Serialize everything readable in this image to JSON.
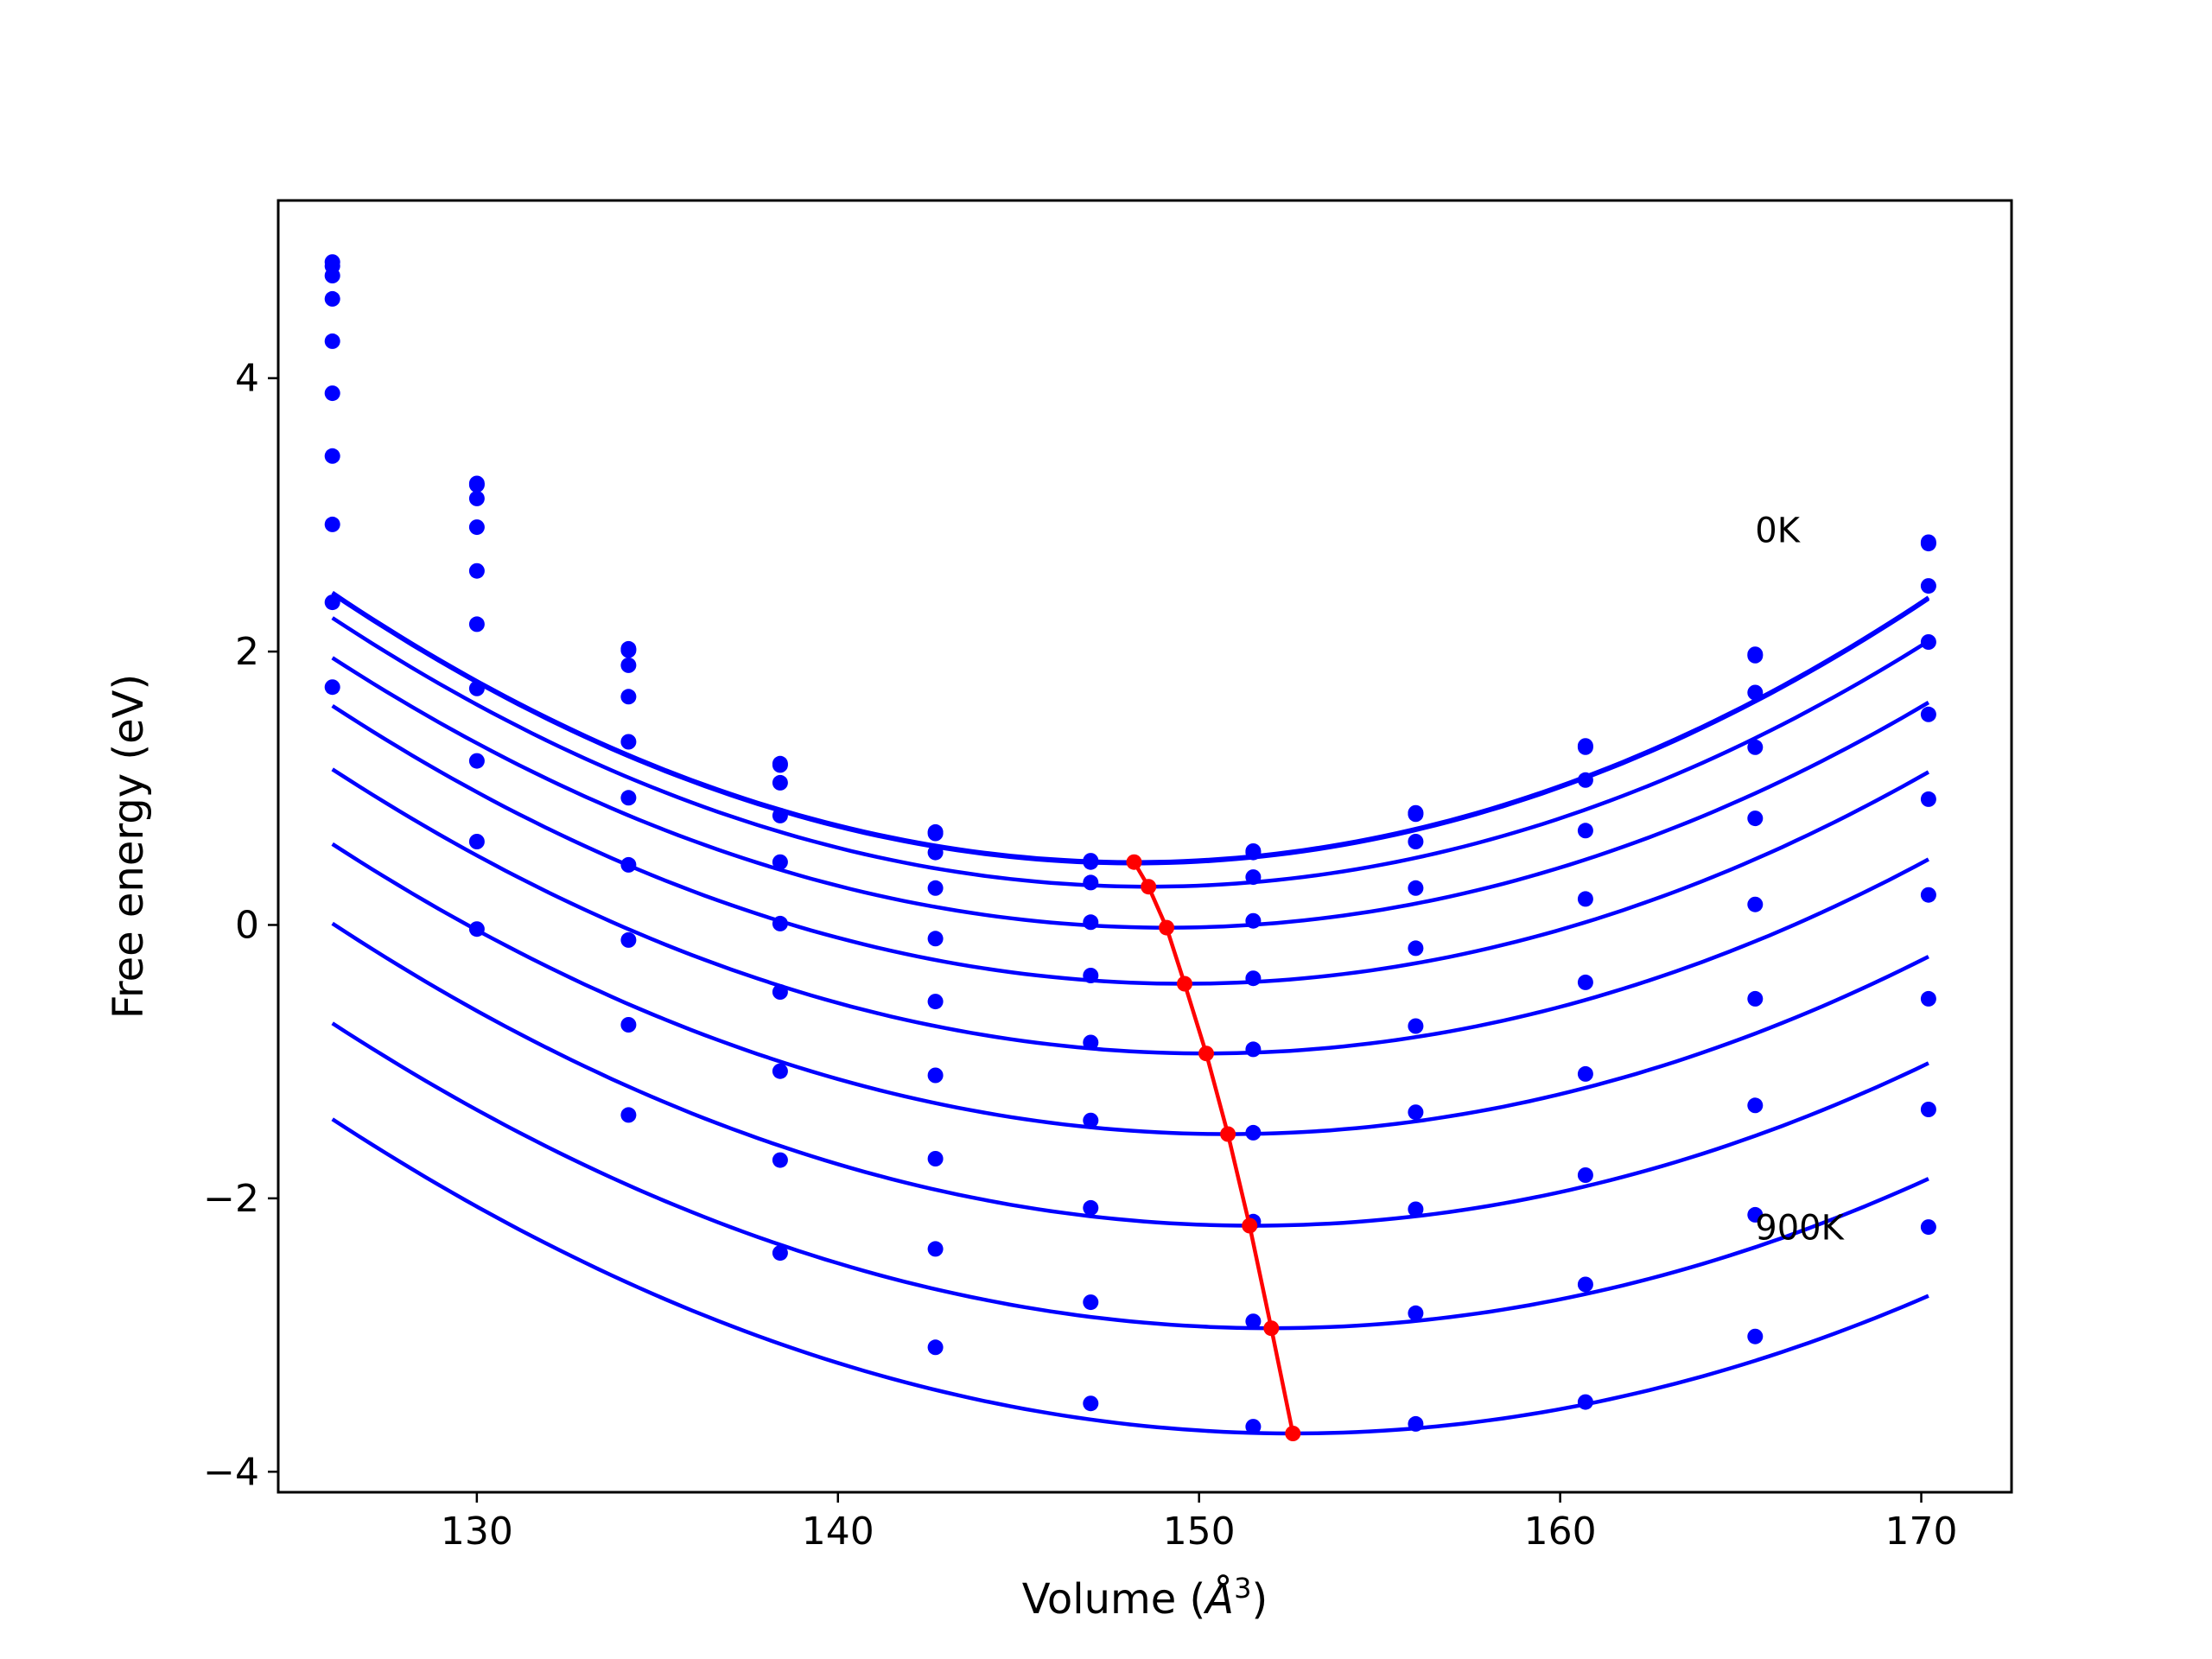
{
  "chart_data": {
    "type": "line",
    "title": "",
    "xlabel": "Volume (Å³)",
    "xlabel_base": "Volume (",
    "xlabel_sym": "Å",
    "xlabel_sup": "3",
    "xlabel_end": ")",
    "ylabel": "Free energy (eV)",
    "xlim": [
      124.5,
      172.5
    ],
    "ylim": [
      -4.15,
      5.3
    ],
    "xticks": [
      130,
      140,
      150,
      160,
      170
    ],
    "xtick_labels": [
      "130",
      "140",
      "150",
      "160",
      "170"
    ],
    "yticks": [
      -4,
      -2,
      0,
      2,
      4
    ],
    "ytick_labels": [
      "−4",
      "−2",
      "0",
      "2",
      "4"
    ],
    "grid": false,
    "colors": {
      "curves": "#0000ff",
      "minimum_path": "#ff0000"
    },
    "x": [
      126.0,
      130.0,
      134.2,
      138.4,
      142.7,
      147.0,
      151.5,
      156.0,
      160.7,
      165.4,
      170.2
    ],
    "series": [
      {
        "values": [
          4.85,
          3.23,
          2.02,
          1.18,
          0.68,
          0.47,
          0.54,
          0.82,
          1.31,
          1.98,
          2.8
        ]
      },
      {
        "values": [
          4.82,
          3.22,
          2.01,
          1.17,
          0.67,
          0.46,
          0.53,
          0.81,
          1.3,
          1.97,
          2.79
        ]
      },
      {
        "values": [
          4.75,
          3.12,
          1.9,
          1.04,
          0.53,
          0.31,
          0.35,
          0.61,
          1.06,
          1.7,
          2.48
        ]
      },
      {
        "values": [
          4.58,
          2.91,
          1.67,
          0.8,
          0.27,
          0.02,
          0.03,
          0.27,
          0.69,
          1.3,
          2.07
        ]
      },
      {
        "values": [
          4.27,
          2.59,
          1.34,
          0.46,
          -0.1,
          -0.37,
          -0.39,
          -0.17,
          0.19,
          0.78,
          1.54
        ]
      },
      {
        "values": [
          3.89,
          2.2,
          0.93,
          0.01,
          -0.56,
          -0.86,
          -0.91,
          -0.74,
          -0.42,
          0.15,
          0.92
        ]
      },
      {
        "values": [
          3.43,
          1.73,
          0.44,
          -0.49,
          -1.1,
          -1.43,
          -1.52,
          -1.37,
          -1.09,
          -0.54,
          0.22
        ]
      },
      {
        "values": [
          2.93,
          1.2,
          -0.11,
          -1.07,
          -1.71,
          -2.07,
          -2.17,
          -2.08,
          -1.83,
          -1.32,
          -0.54
        ]
      },
      {
        "values": [
          2.36,
          0.61,
          -0.73,
          -1.72,
          -2.37,
          -2.76,
          -2.9,
          -2.84,
          -2.63,
          -2.12,
          -1.35
        ]
      },
      {
        "values": [
          1.74,
          -0.03,
          -1.39,
          -2.4,
          -3.09,
          -3.5,
          -3.67,
          -3.65,
          -3.49,
          -3.01,
          -2.21
        ]
      }
    ],
    "fit_curves": [
      {
        "coef": [
          0.004,
          148.2,
          0.45
        ]
      },
      {
        "coef": [
          0.004,
          148.2,
          0.46
        ]
      },
      {
        "coef": [
          0.00385,
          148.6,
          0.28
        ]
      },
      {
        "coef": [
          0.0037,
          149.1,
          -0.02
        ]
      },
      {
        "coef": [
          0.00365,
          149.6,
          -0.43
        ]
      },
      {
        "coef": [
          0.00355,
          150.2,
          -0.94
        ]
      },
      {
        "coef": [
          0.00345,
          150.8,
          -1.53
        ]
      },
      {
        "coef": [
          0.0034,
          151.5,
          -2.2
        ]
      },
      {
        "coef": [
          0.0033,
          152.0,
          -2.95
        ]
      },
      {
        "coef": [
          0.00325,
          152.6,
          -3.72
        ]
      }
    ],
    "minimum_path": {
      "x": [
        148.2,
        148.6,
        149.1,
        149.6,
        150.2,
        150.8,
        151.4,
        152.0,
        152.6
      ],
      "y": [
        0.46,
        0.28,
        -0.02,
        -0.43,
        -0.94,
        -1.53,
        -2.2,
        -2.95,
        -3.72
      ]
    },
    "annotations": [
      {
        "text": "0K",
        "x": 165.4,
        "y": 2.8
      },
      {
        "text": "900K",
        "x": 165.4,
        "y": -2.3
      }
    ]
  }
}
